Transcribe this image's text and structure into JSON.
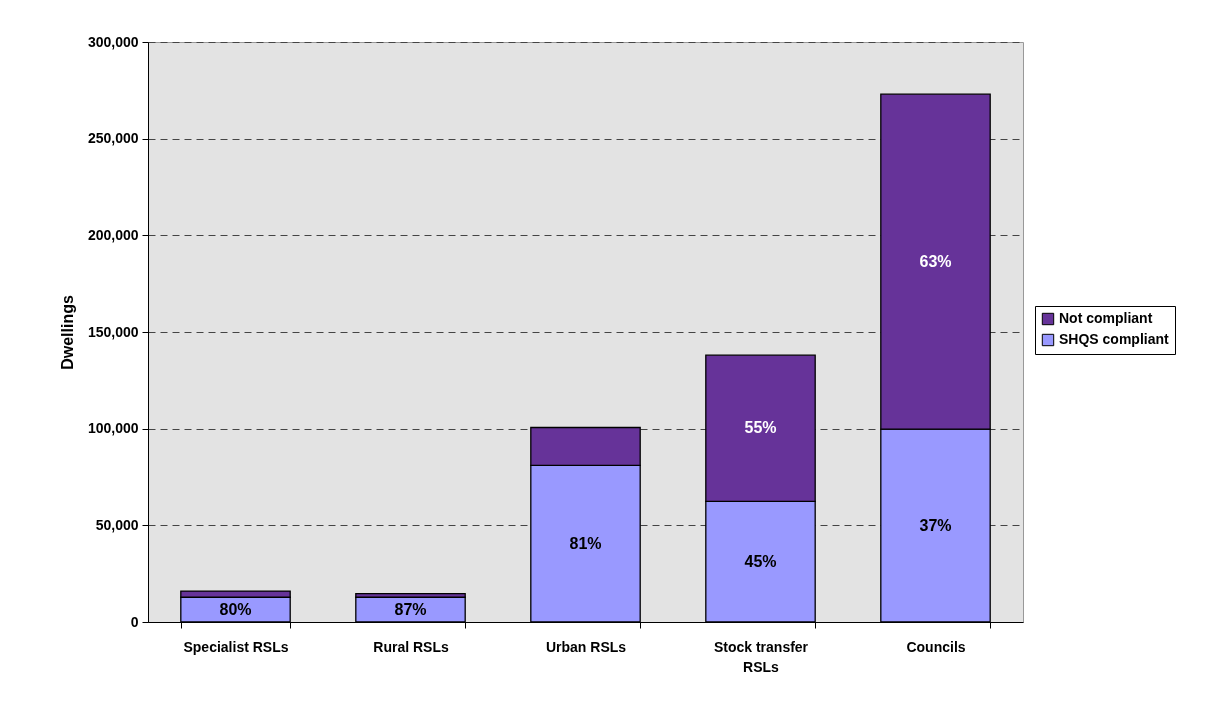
{
  "chart_data": {
    "type": "bar",
    "stacked": true,
    "ylabel": "Dwellings",
    "categories": [
      "Specialist RSLs",
      "Rural RSLs",
      "Urban RSLs",
      "Stock transfer RSLs",
      "Councils"
    ],
    "series": [
      {
        "name": "SHQS compliant",
        "color": "#9999ff",
        "values": [
          12800,
          12800,
          81000,
          62400,
          99800
        ]
      },
      {
        "name": "Not compliant",
        "color": "#663399",
        "values": [
          3200,
          1900,
          19600,
          75600,
          173200
        ]
      }
    ],
    "annotations": [
      "80%",
      "87%",
      "81%",
      "45%",
      "55%",
      "37%",
      "63%"
    ],
    "ylim": [
      0,
      300000
    ],
    "yticks": [
      0,
      {
        "value": 50000,
        "label": "50,000"
      },
      {
        "value": 100000,
        "label": "100,000"
      },
      {
        "value": 150000,
        "label": "150,000"
      },
      {
        "value": 200000,
        "label": "200,000"
      },
      {
        "value": 250000,
        "label": "250,000"
      },
      {
        "value": 300000,
        "label": "300,000"
      }
    ],
    "grid": "y",
    "legend": "right"
  }
}
